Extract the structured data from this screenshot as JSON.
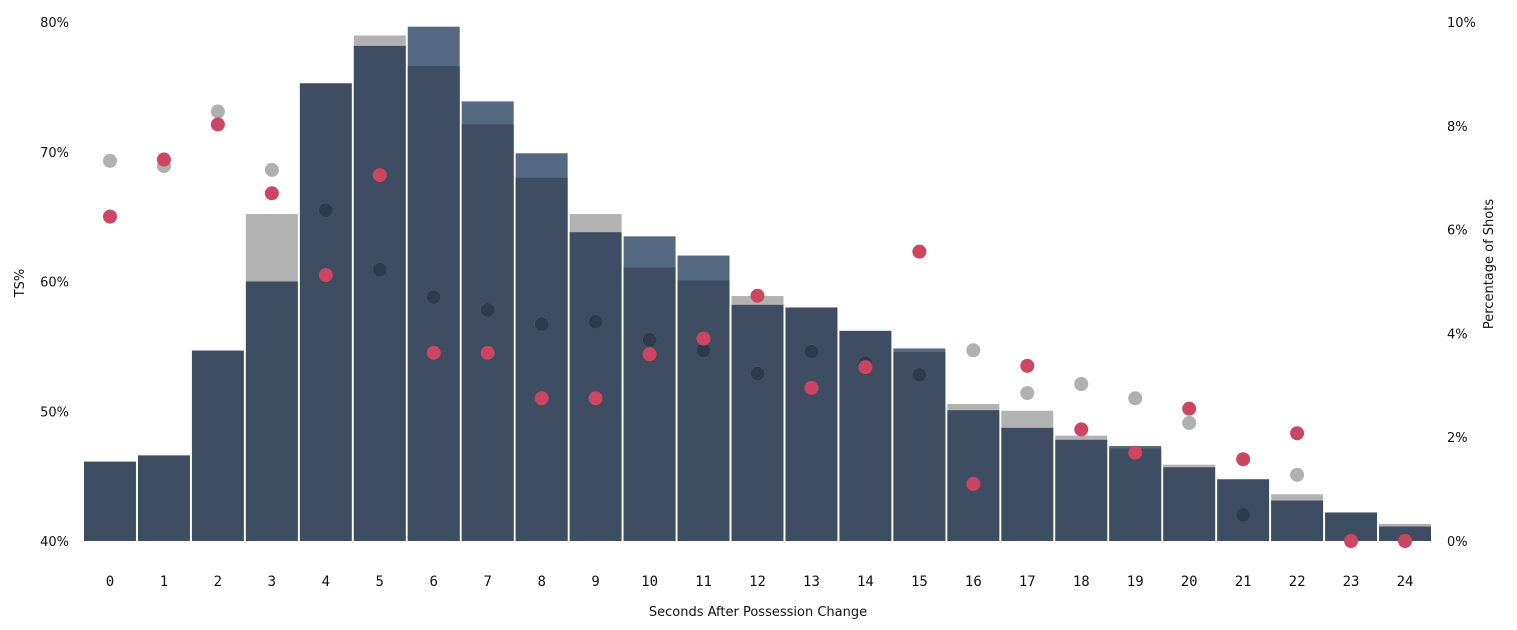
{
  "chart_data": {
    "type": "bar",
    "xlabel": "Seconds After Possession Change",
    "ylabel_left": "TS%",
    "ylabel_right": "Percentage of Shots",
    "categories": [
      "0",
      "1",
      "2",
      "3",
      "4",
      "5",
      "6",
      "7",
      "8",
      "9",
      "10",
      "11",
      "12",
      "13",
      "14",
      "15",
      "16",
      "17",
      "18",
      "19",
      "20",
      "21",
      "22",
      "23",
      "24"
    ],
    "y_left": {
      "min": 40,
      "max": 80,
      "ticks": [
        40,
        50,
        60,
        70,
        80
      ],
      "format": "{v}%"
    },
    "y_right": {
      "min": 0,
      "max": 10,
      "ticks": [
        0,
        2,
        4,
        6,
        8,
        10
      ],
      "format": "{v}%"
    },
    "bar_series": [
      {
        "values": [
          1.53,
          1.65,
          3.67,
          5.0,
          8.82,
          9.54,
          9.15,
          8.03,
          7.0,
          5.95,
          5.27,
          5.02,
          4.55,
          4.5,
          4.05,
          3.64,
          2.52,
          2.18,
          1.95,
          1.78,
          1.42,
          1.19,
          0.78,
          0.55,
          0.28
        ]
      },
      {
        "values": [
          1.35,
          1.55,
          3.47,
          6.3,
          8.72,
          9.74,
          8.85,
          8.47,
          6.47,
          6.3,
          5.14,
          4.89,
          4.72,
          4.41,
          3.97,
          3.71,
          2.64,
          2.51,
          2.03,
          1.75,
          1.47,
          1.19,
          0.9,
          0.55,
          0.33
        ]
      },
      {
        "values": [
          1.53,
          1.65,
          3.67,
          5.0,
          8.72,
          9.54,
          9.91,
          8.47,
          7.47,
          5.95,
          5.87,
          5.5,
          4.55,
          4.45,
          4.05,
          3.71,
          2.17,
          2.2,
          1.95,
          1.83,
          1.38,
          1.19,
          0.78,
          0.55,
          0.28
        ]
      }
    ],
    "point_series": [
      {
        "values": [
          69.3,
          68.9,
          73.1,
          68.6,
          65.5,
          60.9,
          58.8,
          57.8,
          56.7,
          56.9,
          55.5,
          54.7,
          52.9,
          54.6,
          53.7,
          52.8,
          54.7,
          51.4,
          52.1,
          51.0,
          49.1,
          42.0,
          45.1,
          null,
          null
        ]
      },
      {
        "values": [
          null,
          null,
          null,
          null,
          65.5,
          60.9,
          58.8,
          57.8,
          56.7,
          56.9,
          55.5,
          54.7,
          52.9,
          54.6,
          53.7,
          52.8,
          null,
          null,
          null,
          null,
          null,
          42.0,
          null,
          null,
          null
        ]
      },
      {
        "values": [
          65.0,
          69.4,
          72.1,
          66.8,
          60.5,
          68.2,
          54.5,
          54.5,
          51.0,
          51.0,
          54.4,
          55.6,
          58.9,
          51.8,
          53.4,
          62.3,
          44.4,
          53.5,
          48.6,
          46.8,
          50.2,
          46.3,
          48.3,
          40.0,
          40.0
        ]
      }
    ],
    "colors": {
      "bar_primary": "#3e4d62",
      "bar_top_light": "#b2b2b2",
      "bar_top_blue": "#556881",
      "point_gray": "#b0b0b0",
      "point_dark": "#2e3a4d",
      "point_red": "#cc4662",
      "text": "#111111"
    },
    "grid": false,
    "legend": "none"
  }
}
